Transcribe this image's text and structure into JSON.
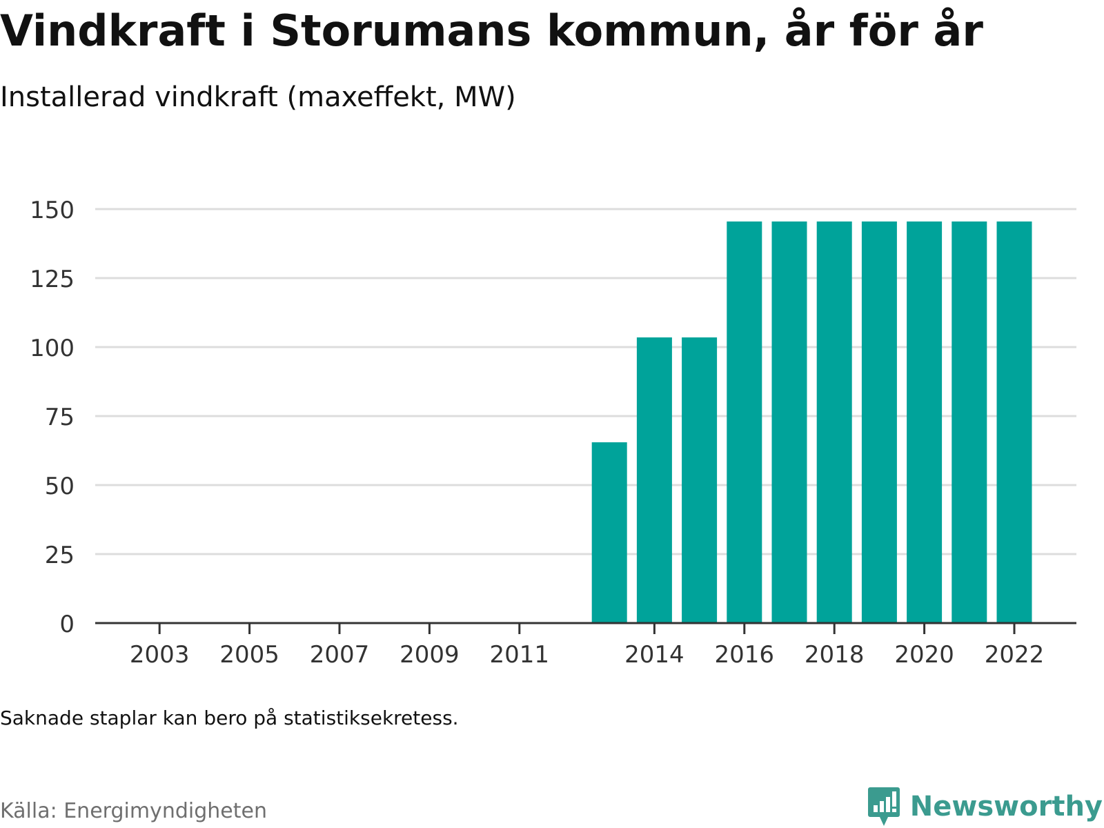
{
  "header": {
    "title": "Vindkraft i Storumans kommun, år för år",
    "subtitle": "Installerad vindkraft (maxeffekt, MW)"
  },
  "footer": {
    "note": "Saknade staplar kan bero på statistiksekretess.",
    "source": "Källa: Energimyndigheten",
    "brand": "Newsworthy",
    "brand_icon": "newsworthy-logo-icon"
  },
  "colors": {
    "bar": "#00a39a",
    "grid": "#dddddd",
    "axis": "#333333",
    "brand": "#3b9b8f"
  },
  "chart_data": {
    "type": "bar",
    "title": "Vindkraft i Storumans kommun, år för år",
    "subtitle": "Installerad vindkraft (maxeffekt, MW)",
    "xlabel": "",
    "ylabel": "",
    "categories": [
      "2002",
      "2003",
      "2004",
      "2005",
      "2006",
      "2007",
      "2008",
      "2009",
      "2010",
      "2011",
      "2012",
      "2013",
      "2014",
      "2015",
      "2016",
      "2017",
      "2018",
      "2019",
      "2020",
      "2021",
      "2022"
    ],
    "x_tick_labels": [
      "2003",
      "2005",
      "2007",
      "2009",
      "2011",
      "2014",
      "2016",
      "2018",
      "2020",
      "2022"
    ],
    "values": [
      null,
      null,
      null,
      null,
      null,
      null,
      null,
      null,
      null,
      null,
      null,
      65.5,
      103.5,
      103.5,
      145.5,
      145.5,
      145.5,
      145.5,
      145.5,
      145.5,
      145.5
    ],
    "y_ticks": [
      0,
      25,
      50,
      75,
      100,
      125,
      150
    ],
    "ylim": [
      0,
      150
    ],
    "grid": true,
    "legend": "none"
  }
}
